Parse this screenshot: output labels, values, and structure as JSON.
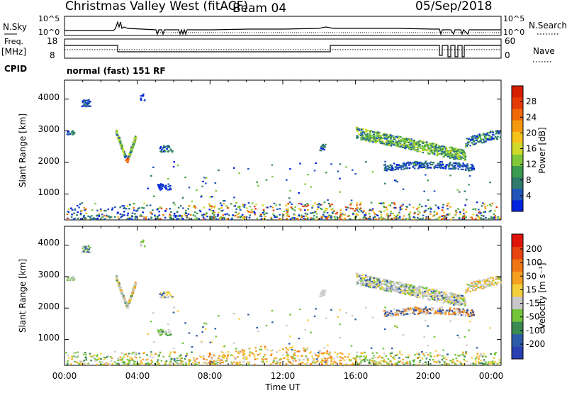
{
  "header": {
    "title": "Christmas Valley West (fitACF)",
    "beam": "Beam 04",
    "date": "05/Sep/2018"
  },
  "summary": {
    "nsky_label": "N.Sky",
    "nsky_ticks": [
      "10^5",
      "10^0"
    ],
    "nsearch_label": "N.Search",
    "nsearch_ticks": [
      "10^5",
      "10^0"
    ],
    "freq_label": "Freq.",
    "freq_unit": "[MHz]",
    "freq_ticks": [
      "18",
      "8"
    ],
    "nave_label": "Nave",
    "nave_ticks": [
      "60",
      "0"
    ],
    "cpid_label": "CPID",
    "cpid_text": "normal (fast) 151 RF"
  },
  "chart_data": [
    {
      "type": "heatmap",
      "title": "",
      "xlabel": "",
      "ylabel": "Slant Range [km]",
      "ylim": [
        180,
        4600
      ],
      "yticks": [
        "1000",
        "2000",
        "3000",
        "4000"
      ],
      "colorbar": {
        "label": "Power [dB]",
        "ticks": [
          "4",
          "8",
          "12",
          "16",
          "20",
          "24",
          "28"
        ],
        "range": [
          0,
          32
        ],
        "colors": [
          "#0022dd",
          "#2255bb",
          "#2f7a6a",
          "#3b9b4e",
          "#7ec83a",
          "#cfdb2a",
          "#f5c21a",
          "#f59a10",
          "#f06a0a",
          "#e53a05",
          "#d81e00"
        ]
      }
    },
    {
      "type": "heatmap",
      "title": "",
      "xlabel": "Time UT",
      "ylabel": "Slant Range [km]",
      "ylim": [
        180,
        4600
      ],
      "yticks": [
        "1000",
        "2000",
        "3000",
        "4000"
      ],
      "xticks": [
        "00:00",
        "04:00",
        "08:00",
        "12:00",
        "16:00",
        "20:00",
        "00:00"
      ],
      "colorbar": {
        "label": "Velocity [m s⁻¹]",
        "ticks": [
          "200",
          "100",
          "50",
          "15",
          "-15",
          "-50",
          "-100",
          "-200"
        ],
        "colors": [
          "#2a3fb0",
          "#2d5ca8",
          "#3a8a52",
          "#74c43a",
          "#c8c8c8",
          "#f5cf3a",
          "#f5a020",
          "#f07814",
          "#e84410",
          "#e0150a"
        ]
      }
    }
  ]
}
